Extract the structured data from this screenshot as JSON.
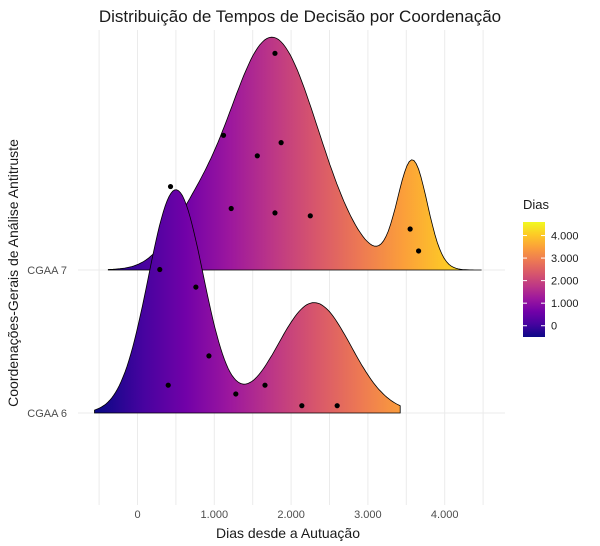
{
  "chart_data": {
    "type": "ridgeline",
    "title": "Distribuição de Tempos de Decisão por Coordenação",
    "xlabel": "Dias desde a Autuação",
    "ylabel": "Coordenações-Gerais de Análise Antitruste",
    "x_ticks": [
      0,
      1000,
      2000,
      3000,
      4000
    ],
    "x_tick_labels": [
      "0",
      "1.000",
      "2.000",
      "3.000",
      "4.000"
    ],
    "xlim": [
      -600,
      4700
    ],
    "grid": true,
    "legend": {
      "title": "Dias",
      "position": "right",
      "ticks": [
        0,
        1000,
        2000,
        3000,
        4000
      ],
      "tick_labels": [
        "0",
        "1.000",
        "2.000",
        "3.000",
        "4.000"
      ],
      "range": [
        -500,
        4600
      ],
      "colormap": "plasma"
    },
    "series": [
      {
        "name": "CGAA 6",
        "density_x_range": [
          -560,
          3420
        ],
        "points": [
          {
            "x": 290,
            "y": 0.98
          },
          {
            "x": 760,
            "y": 0.86
          },
          {
            "x": 930,
            "y": 0.39
          },
          {
            "x": 400,
            "y": 0.19
          },
          {
            "x": 1280,
            "y": 0.13
          },
          {
            "x": 1660,
            "y": 0.19
          },
          {
            "x": 2140,
            "y": 0.05
          },
          {
            "x": 2600,
            "y": 0.05
          }
        ]
      },
      {
        "name": "CGAA 7",
        "density_x_range": [
          -380,
          4480
        ],
        "points": [
          {
            "x": 1790,
            "y": 1.48
          },
          {
            "x": 1120,
            "y": 0.92
          },
          {
            "x": 1870,
            "y": 0.87
          },
          {
            "x": 1560,
            "y": 0.78
          },
          {
            "x": 430,
            "y": 0.57
          },
          {
            "x": 1220,
            "y": 0.42
          },
          {
            "x": 1790,
            "y": 0.39
          },
          {
            "x": 2250,
            "y": 0.37
          },
          {
            "x": 3550,
            "y": 0.28
          },
          {
            "x": 3660,
            "y": 0.13
          }
        ]
      }
    ]
  },
  "colors": {
    "plasma": [
      "#0d0887",
      "#46039f",
      "#7201a8",
      "#9c179e",
      "#bd3786",
      "#d8576b",
      "#ed7953",
      "#fb9f3a",
      "#fdca26",
      "#f0f921"
    ],
    "outline": "#000000",
    "points": "#000000"
  }
}
